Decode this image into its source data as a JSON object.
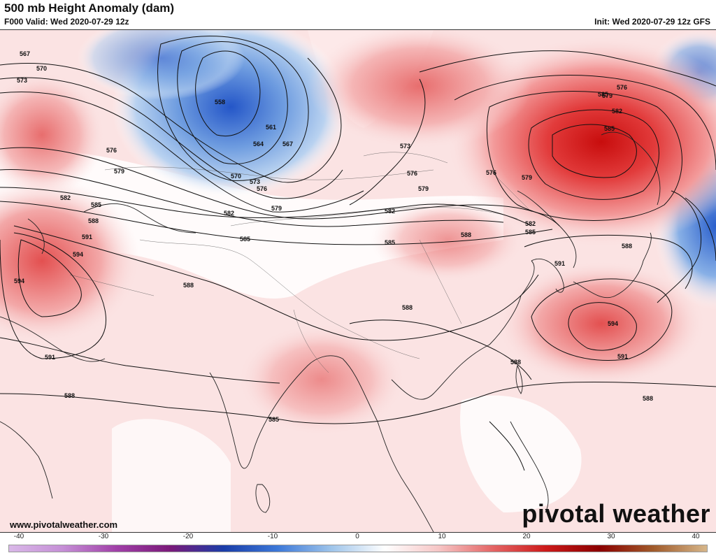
{
  "header": {
    "title": "500 mb Height Anomaly (dam)",
    "valid": "F000 Valid: Wed 2020-07-29 12z",
    "init": "Init: Wed 2020-07-29 12z GFS"
  },
  "footer": {
    "url": "www.pivotalweather.com",
    "brand": "pivotal weather"
  },
  "colorbar": {
    "ticks": [
      "-40",
      "-30",
      "-20",
      "-10",
      "0",
      "10",
      "20",
      "30",
      "40"
    ],
    "range": [
      -40,
      40
    ],
    "gradient": [
      "#d9b8e8",
      "#c58fd6",
      "#a040a8",
      "#7a1a7a",
      "#1a3da8",
      "#3c78d8",
      "#9ec4ea",
      "#ffffff",
      "#f6c6c6",
      "#e46666",
      "#cc1a1a",
      "#8b0000",
      "#a05a2a",
      "#d6b68a"
    ]
  },
  "contours": {
    "labels": [
      "567",
      "570",
      "573",
      "558",
      "561",
      "564",
      "567",
      "576",
      "579",
      "582",
      "585",
      "588",
      "591",
      "594",
      "570",
      "573",
      "576",
      "582",
      "579",
      "573",
      "576",
      "579",
      "585",
      "582",
      "585",
      "576",
      "579",
      "582",
      "585",
      "588",
      "591",
      "594",
      "588",
      "585",
      "588",
      "585",
      "591",
      "588",
      "588",
      "576",
      "579",
      "582",
      "585",
      "588",
      "594",
      "591",
      "588"
    ]
  },
  "anomalies": {
    "negative_color": "#3a6fcf",
    "positive_color": "#d81e1e"
  }
}
